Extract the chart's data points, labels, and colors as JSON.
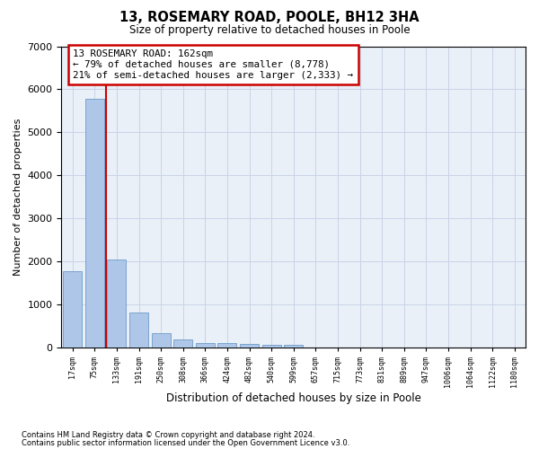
{
  "title": "13, ROSEMARY ROAD, POOLE, BH12 3HA",
  "subtitle": "Size of property relative to detached houses in Poole",
  "xlabel": "Distribution of detached houses by size in Poole",
  "ylabel": "Number of detached properties",
  "annotation_title": "13 ROSEMARY ROAD: 162sqm",
  "annotation_line1": "← 79% of detached houses are smaller (8,778)",
  "annotation_line2": "21% of semi-detached houses are larger (2,333) →",
  "footnote1": "Contains HM Land Registry data © Crown copyright and database right 2024.",
  "footnote2": "Contains public sector information licensed under the Open Government Licence v3.0.",
  "bar_color": "#aec6e8",
  "bar_edge_color": "#5a8fc0",
  "grid_color": "#c8d4e8",
  "annotation_line_color": "#cc0000",
  "background_color": "#eaf0f8",
  "categories": [
    "17sqm",
    "75sqm",
    "133sqm",
    "191sqm",
    "250sqm",
    "308sqm",
    "366sqm",
    "424sqm",
    "482sqm",
    "540sqm",
    "599sqm",
    "657sqm",
    "715sqm",
    "773sqm",
    "831sqm",
    "889sqm",
    "947sqm",
    "1006sqm",
    "1064sqm",
    "1122sqm",
    "1180sqm"
  ],
  "values": [
    1780,
    5780,
    2060,
    820,
    345,
    195,
    120,
    105,
    95,
    80,
    70,
    0,
    0,
    0,
    0,
    0,
    0,
    0,
    0,
    0,
    0
  ],
  "ylim": [
    0,
    7000
  ],
  "yticks": [
    0,
    1000,
    2000,
    3000,
    4000,
    5000,
    6000,
    7000
  ],
  "red_line_x": 1.5
}
